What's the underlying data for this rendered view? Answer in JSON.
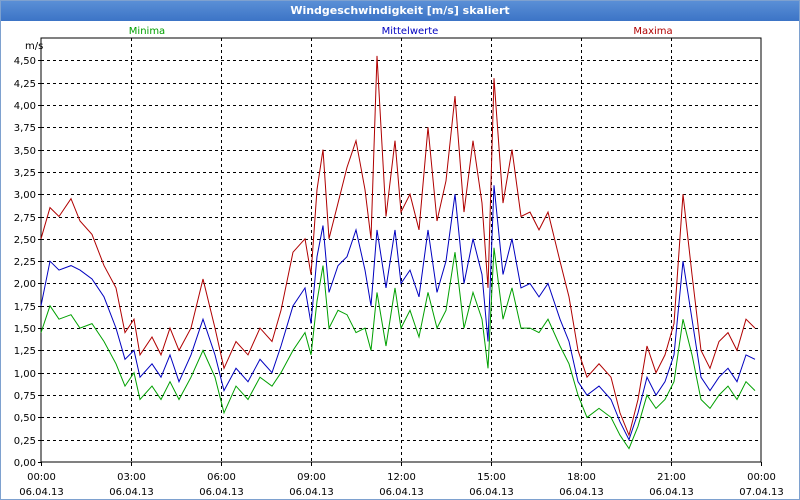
{
  "window": {
    "title": "Windgeschwindigkeit [m/s] skaliert"
  },
  "colors": {
    "minima": "#00a000",
    "mittelwerte": "#0000c0",
    "maxima": "#b00000",
    "grid": "#000000"
  },
  "chart_data": {
    "type": "line",
    "ylabel": "m/s",
    "ylim": [
      0,
      4.75
    ],
    "yticks": [
      "0,00",
      "0,25",
      "0,50",
      "0,75",
      "1,00",
      "1,25",
      "1,50",
      "1,75",
      "2,00",
      "2,25",
      "2,50",
      "2,75",
      "3,00",
      "3,25",
      "3,50",
      "3,75",
      "4,00",
      "4,25",
      "4,50"
    ],
    "xlim": [
      0,
      24
    ],
    "xticks": [
      {
        "time": "00:00",
        "date": "06.04.13"
      },
      {
        "time": "03:00",
        "date": "06.04.13"
      },
      {
        "time": "06:00",
        "date": "06.04.13"
      },
      {
        "time": "09:00",
        "date": "06.04.13"
      },
      {
        "time": "12:00",
        "date": "06.04.13"
      },
      {
        "time": "15:00",
        "date": "06.04.13"
      },
      {
        "time": "18:00",
        "date": "06.04.13"
      },
      {
        "time": "21:00",
        "date": "06.04.13"
      },
      {
        "time": "00:00",
        "date": "07.04.13"
      }
    ],
    "grid": true,
    "legend_position": "top",
    "series": [
      {
        "name": "Minima",
        "color": "#00a000",
        "points": [
          [
            0,
            1.45
          ],
          [
            0.3,
            1.75
          ],
          [
            0.6,
            1.6
          ],
          [
            1.0,
            1.65
          ],
          [
            1.3,
            1.5
          ],
          [
            1.7,
            1.55
          ],
          [
            2.1,
            1.35
          ],
          [
            2.5,
            1.1
          ],
          [
            2.8,
            0.85
          ],
          [
            3.1,
            1.0
          ],
          [
            3.3,
            0.7
          ],
          [
            3.7,
            0.85
          ],
          [
            4.0,
            0.7
          ],
          [
            4.3,
            0.9
          ],
          [
            4.6,
            0.7
          ],
          [
            5.0,
            0.95
          ],
          [
            5.4,
            1.25
          ],
          [
            5.8,
            0.95
          ],
          [
            6.1,
            0.55
          ],
          [
            6.5,
            0.85
          ],
          [
            6.9,
            0.7
          ],
          [
            7.3,
            0.95
          ],
          [
            7.7,
            0.85
          ],
          [
            8.0,
            1.0
          ],
          [
            8.4,
            1.25
          ],
          [
            8.8,
            1.45
          ],
          [
            9.0,
            1.2
          ],
          [
            9.2,
            1.8
          ],
          [
            9.4,
            2.2
          ],
          [
            9.6,
            1.5
          ],
          [
            9.9,
            1.7
          ],
          [
            10.2,
            1.65
          ],
          [
            10.5,
            1.45
          ],
          [
            10.8,
            1.5
          ],
          [
            11.0,
            1.25
          ],
          [
            11.2,
            1.9
          ],
          [
            11.5,
            1.3
          ],
          [
            11.8,
            1.95
          ],
          [
            12.0,
            1.5
          ],
          [
            12.3,
            1.7
          ],
          [
            12.6,
            1.4
          ],
          [
            12.9,
            1.9
          ],
          [
            13.2,
            1.5
          ],
          [
            13.5,
            1.7
          ],
          [
            13.8,
            2.35
          ],
          [
            14.1,
            1.5
          ],
          [
            14.4,
            1.9
          ],
          [
            14.7,
            1.6
          ],
          [
            14.9,
            1.05
          ],
          [
            15.1,
            2.4
          ],
          [
            15.4,
            1.6
          ],
          [
            15.7,
            1.95
          ],
          [
            16.0,
            1.5
          ],
          [
            16.3,
            1.5
          ],
          [
            16.6,
            1.45
          ],
          [
            16.9,
            1.6
          ],
          [
            17.3,
            1.3
          ],
          [
            17.6,
            1.1
          ],
          [
            17.9,
            0.75
          ],
          [
            18.2,
            0.5
          ],
          [
            18.6,
            0.6
          ],
          [
            19.0,
            0.5
          ],
          [
            19.3,
            0.3
          ],
          [
            19.6,
            0.15
          ],
          [
            19.9,
            0.4
          ],
          [
            20.2,
            0.75
          ],
          [
            20.5,
            0.6
          ],
          [
            20.8,
            0.7
          ],
          [
            21.1,
            0.9
          ],
          [
            21.4,
            1.6
          ],
          [
            21.7,
            1.2
          ],
          [
            22.0,
            0.7
          ],
          [
            22.3,
            0.6
          ],
          [
            22.6,
            0.75
          ],
          [
            22.9,
            0.85
          ],
          [
            23.2,
            0.7
          ],
          [
            23.5,
            0.9
          ],
          [
            23.8,
            0.8
          ]
        ]
      },
      {
        "name": "Mittelwerte",
        "color": "#0000c0",
        "points": [
          [
            0,
            1.75
          ],
          [
            0.3,
            2.25
          ],
          [
            0.6,
            2.15
          ],
          [
            1.0,
            2.2
          ],
          [
            1.3,
            2.15
          ],
          [
            1.7,
            2.05
          ],
          [
            2.1,
            1.85
          ],
          [
            2.5,
            1.5
          ],
          [
            2.8,
            1.15
          ],
          [
            3.1,
            1.25
          ],
          [
            3.3,
            0.95
          ],
          [
            3.7,
            1.1
          ],
          [
            4.0,
            0.95
          ],
          [
            4.3,
            1.2
          ],
          [
            4.6,
            0.9
          ],
          [
            5.0,
            1.2
          ],
          [
            5.4,
            1.6
          ],
          [
            5.8,
            1.2
          ],
          [
            6.1,
            0.8
          ],
          [
            6.5,
            1.05
          ],
          [
            6.9,
            0.9
          ],
          [
            7.3,
            1.15
          ],
          [
            7.7,
            1.0
          ],
          [
            8.0,
            1.3
          ],
          [
            8.4,
            1.75
          ],
          [
            8.8,
            1.95
          ],
          [
            9.0,
            1.55
          ],
          [
            9.2,
            2.3
          ],
          [
            9.4,
            2.65
          ],
          [
            9.6,
            1.9
          ],
          [
            9.9,
            2.2
          ],
          [
            10.2,
            2.3
          ],
          [
            10.5,
            2.6
          ],
          [
            10.8,
            2.15
          ],
          [
            11.0,
            1.75
          ],
          [
            11.2,
            2.6
          ],
          [
            11.5,
            1.95
          ],
          [
            11.8,
            2.6
          ],
          [
            12.0,
            2.0
          ],
          [
            12.3,
            2.15
          ],
          [
            12.6,
            1.85
          ],
          [
            12.9,
            2.6
          ],
          [
            13.2,
            1.9
          ],
          [
            13.5,
            2.25
          ],
          [
            13.8,
            3.0
          ],
          [
            14.1,
            2.0
          ],
          [
            14.4,
            2.5
          ],
          [
            14.7,
            2.1
          ],
          [
            14.9,
            1.35
          ],
          [
            15.1,
            3.1
          ],
          [
            15.4,
            2.1
          ],
          [
            15.7,
            2.5
          ],
          [
            16.0,
            1.95
          ],
          [
            16.3,
            2.0
          ],
          [
            16.6,
            1.85
          ],
          [
            16.9,
            2.0
          ],
          [
            17.3,
            1.6
          ],
          [
            17.6,
            1.35
          ],
          [
            17.9,
            0.9
          ],
          [
            18.2,
            0.75
          ],
          [
            18.6,
            0.85
          ],
          [
            19.0,
            0.7
          ],
          [
            19.3,
            0.45
          ],
          [
            19.6,
            0.25
          ],
          [
            19.9,
            0.55
          ],
          [
            20.2,
            0.95
          ],
          [
            20.5,
            0.75
          ],
          [
            20.8,
            0.9
          ],
          [
            21.1,
            1.2
          ],
          [
            21.4,
            2.25
          ],
          [
            21.7,
            1.6
          ],
          [
            22.0,
            0.95
          ],
          [
            22.3,
            0.8
          ],
          [
            22.6,
            0.95
          ],
          [
            22.9,
            1.05
          ],
          [
            23.2,
            0.9
          ],
          [
            23.5,
            1.2
          ],
          [
            23.8,
            1.15
          ]
        ]
      },
      {
        "name": "Maxima",
        "color": "#b00000",
        "points": [
          [
            0,
            2.5
          ],
          [
            0.3,
            2.85
          ],
          [
            0.6,
            2.75
          ],
          [
            1.0,
            2.95
          ],
          [
            1.3,
            2.7
          ],
          [
            1.7,
            2.55
          ],
          [
            2.1,
            2.2
          ],
          [
            2.5,
            1.95
          ],
          [
            2.8,
            1.45
          ],
          [
            3.1,
            1.6
          ],
          [
            3.3,
            1.2
          ],
          [
            3.7,
            1.4
          ],
          [
            4.0,
            1.2
          ],
          [
            4.3,
            1.5
          ],
          [
            4.6,
            1.25
          ],
          [
            5.0,
            1.5
          ],
          [
            5.4,
            2.05
          ],
          [
            5.8,
            1.5
          ],
          [
            6.1,
            1.05
          ],
          [
            6.5,
            1.35
          ],
          [
            6.9,
            1.2
          ],
          [
            7.3,
            1.5
          ],
          [
            7.7,
            1.35
          ],
          [
            8.0,
            1.7
          ],
          [
            8.4,
            2.35
          ],
          [
            8.8,
            2.5
          ],
          [
            9.0,
            2.1
          ],
          [
            9.2,
            3.05
          ],
          [
            9.4,
            3.5
          ],
          [
            9.6,
            2.5
          ],
          [
            9.9,
            2.9
          ],
          [
            10.2,
            3.3
          ],
          [
            10.5,
            3.6
          ],
          [
            10.8,
            3.05
          ],
          [
            11.0,
            2.5
          ],
          [
            11.2,
            4.55
          ],
          [
            11.5,
            2.75
          ],
          [
            11.8,
            3.6
          ],
          [
            12.0,
            2.8
          ],
          [
            12.3,
            3.0
          ],
          [
            12.6,
            2.6
          ],
          [
            12.9,
            3.75
          ],
          [
            13.2,
            2.7
          ],
          [
            13.5,
            3.15
          ],
          [
            13.8,
            4.1
          ],
          [
            14.1,
            2.8
          ],
          [
            14.4,
            3.6
          ],
          [
            14.7,
            2.9
          ],
          [
            14.9,
            1.95
          ],
          [
            15.1,
            4.3
          ],
          [
            15.4,
            2.9
          ],
          [
            15.7,
            3.5
          ],
          [
            16.0,
            2.75
          ],
          [
            16.3,
            2.8
          ],
          [
            16.6,
            2.6
          ],
          [
            16.9,
            2.8
          ],
          [
            17.3,
            2.25
          ],
          [
            17.6,
            1.85
          ],
          [
            17.9,
            1.25
          ],
          [
            18.2,
            0.95
          ],
          [
            18.6,
            1.1
          ],
          [
            19.0,
            0.95
          ],
          [
            19.3,
            0.55
          ],
          [
            19.6,
            0.3
          ],
          [
            19.9,
            0.7
          ],
          [
            20.2,
            1.3
          ],
          [
            20.5,
            1.0
          ],
          [
            20.8,
            1.2
          ],
          [
            21.1,
            1.55
          ],
          [
            21.4,
            3.0
          ],
          [
            21.7,
            2.1
          ],
          [
            22.0,
            1.25
          ],
          [
            22.3,
            1.05
          ],
          [
            22.6,
            1.35
          ],
          [
            22.9,
            1.45
          ],
          [
            23.2,
            1.25
          ],
          [
            23.5,
            1.6
          ],
          [
            23.8,
            1.5
          ]
        ]
      }
    ]
  }
}
